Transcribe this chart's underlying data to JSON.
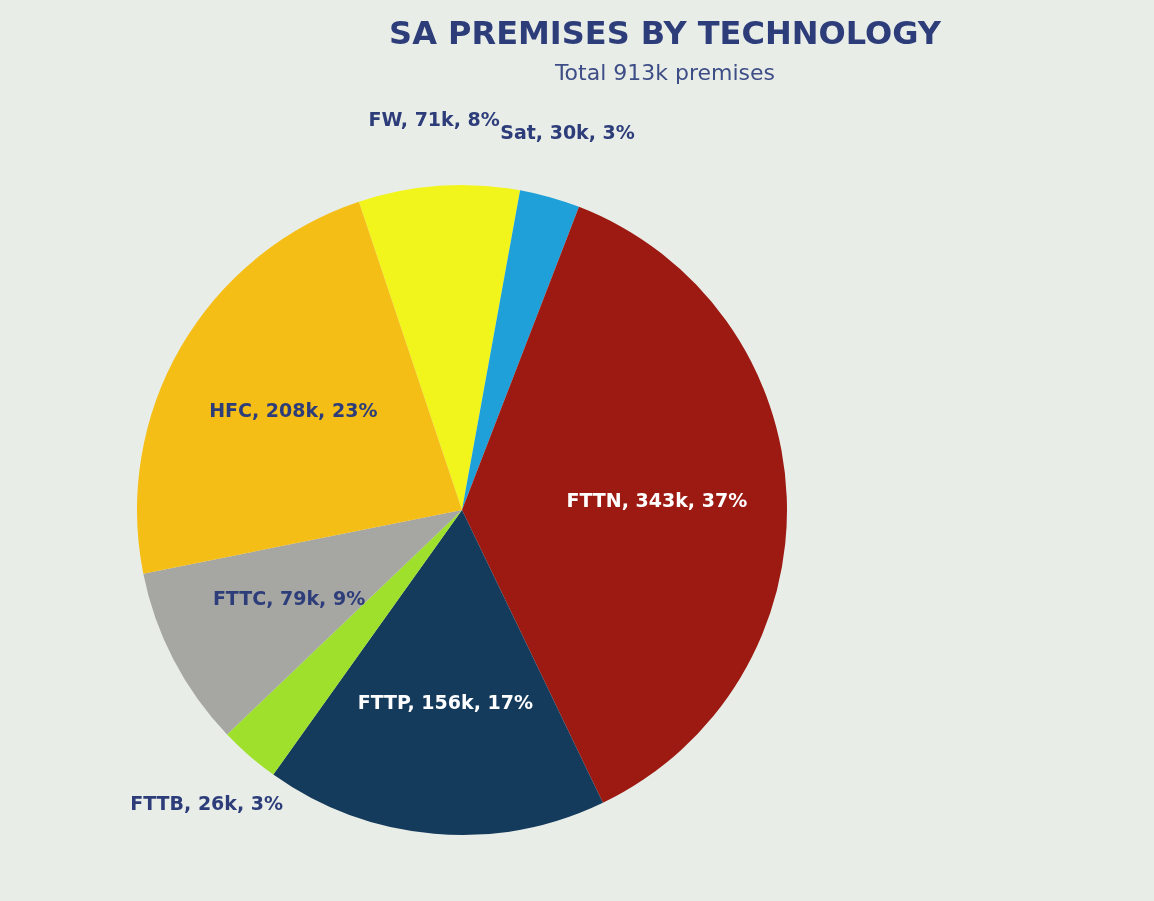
{
  "chart_data": {
    "type": "pie",
    "title": "SA PREMISES BY TECHNOLOGY",
    "subtitle": "Total 913k premises",
    "categories": [
      "FW",
      "Sat",
      "FTTN",
      "FTTP",
      "FTTB",
      "FTTC",
      "HFC"
    ],
    "values": [
      8,
      3,
      37,
      17,
      3,
      9,
      23
    ],
    "colors": [
      "#f2f51c",
      "#1fa0d8",
      "#9c1a12",
      "#143a5c",
      "#9ee02c",
      "#a6a6a2",
      "#f5be16"
    ],
    "value_labels": [
      "71k, 8%",
      "30k, 3%",
      "343k, 37%",
      "156k, 17%",
      "26k, 3%",
      "79k, 9%",
      "208k, 23%"
    ],
    "legend": false
  }
}
